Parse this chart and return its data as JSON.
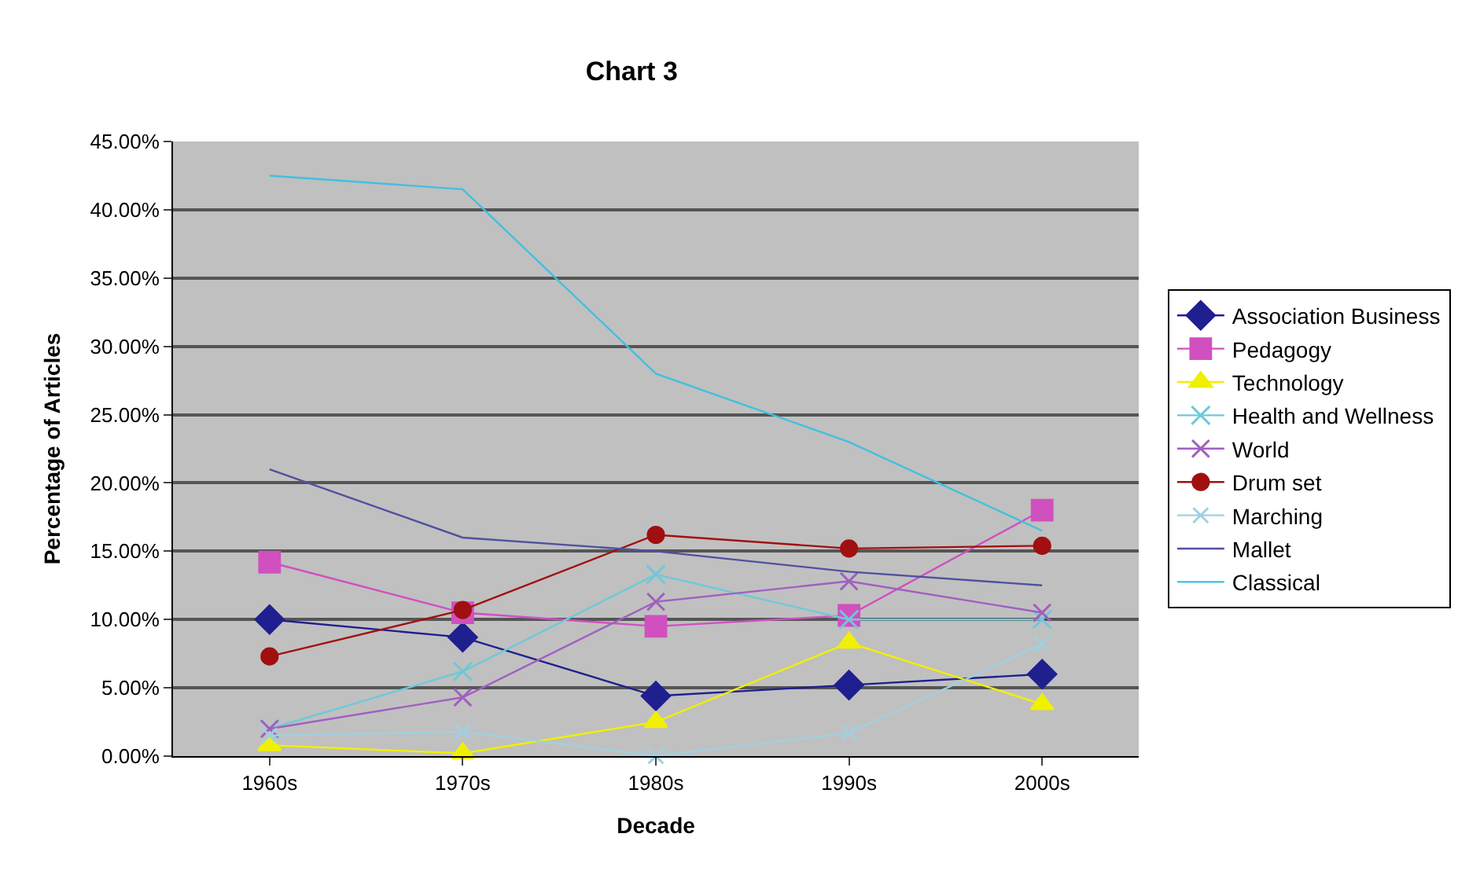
{
  "chart_data": {
    "type": "line",
    "title": "Chart 3",
    "xlabel": "Decade",
    "ylabel": "Percentage of Articles",
    "categories": [
      "1960s",
      "1970s",
      "1980s",
      "1990s",
      "2000s"
    ],
    "ylim": [
      0,
      45
    ],
    "yticks": [
      {
        "value": 0,
        "label": "0.00%"
      },
      {
        "value": 5,
        "label": "5.00%"
      },
      {
        "value": 10,
        "label": "10.00%"
      },
      {
        "value": 15,
        "label": "15.00%"
      },
      {
        "value": 20,
        "label": "20.00%"
      },
      {
        "value": 25,
        "label": "25.00%"
      },
      {
        "value": 30,
        "label": "30.00%"
      },
      {
        "value": 35,
        "label": "35.00%"
      },
      {
        "value": 40,
        "label": "40.00%"
      },
      {
        "value": 45,
        "label": "45.00%"
      }
    ],
    "grid": "y",
    "legend": "right",
    "series": [
      {
        "name": "Association Business",
        "color": "#1f1f8f",
        "marker": "diamond",
        "values": [
          10.0,
          8.7,
          4.4,
          5.2,
          6.0
        ]
      },
      {
        "name": "Pedagogy",
        "color": "#d050c0",
        "marker": "square",
        "values": [
          14.2,
          10.5,
          9.5,
          10.3,
          18.0
        ]
      },
      {
        "name": "Technology",
        "color": "#f0f000",
        "marker": "triangle",
        "values": [
          0.8,
          0.2,
          2.5,
          8.3,
          3.8
        ]
      },
      {
        "name": "Health and Wellness",
        "color": "#70c8d8",
        "marker": "cross",
        "values": [
          2.0,
          6.2,
          13.3,
          10.0,
          10.0
        ]
      },
      {
        "name": "World",
        "color": "#a060c0",
        "marker": "cross",
        "values": [
          2.0,
          4.3,
          11.3,
          12.8,
          10.5
        ]
      },
      {
        "name": "Drum set",
        "color": "#a01010",
        "marker": "circle",
        "values": [
          7.3,
          10.7,
          16.2,
          15.2,
          15.4
        ]
      },
      {
        "name": "Marching",
        "color": "#a0d0e0",
        "marker": "cross",
        "values": [
          1.5,
          1.8,
          0.0,
          1.7,
          8.2
        ]
      },
      {
        "name": "Mallet",
        "color": "#5050a0",
        "marker": "none",
        "values": [
          21.0,
          16.0,
          15.0,
          13.5,
          12.5
        ]
      },
      {
        "name": "Classical",
        "color": "#40c0e0",
        "marker": "none",
        "values": [
          42.5,
          41.5,
          28.0,
          23.0,
          16.5
        ]
      }
    ]
  }
}
